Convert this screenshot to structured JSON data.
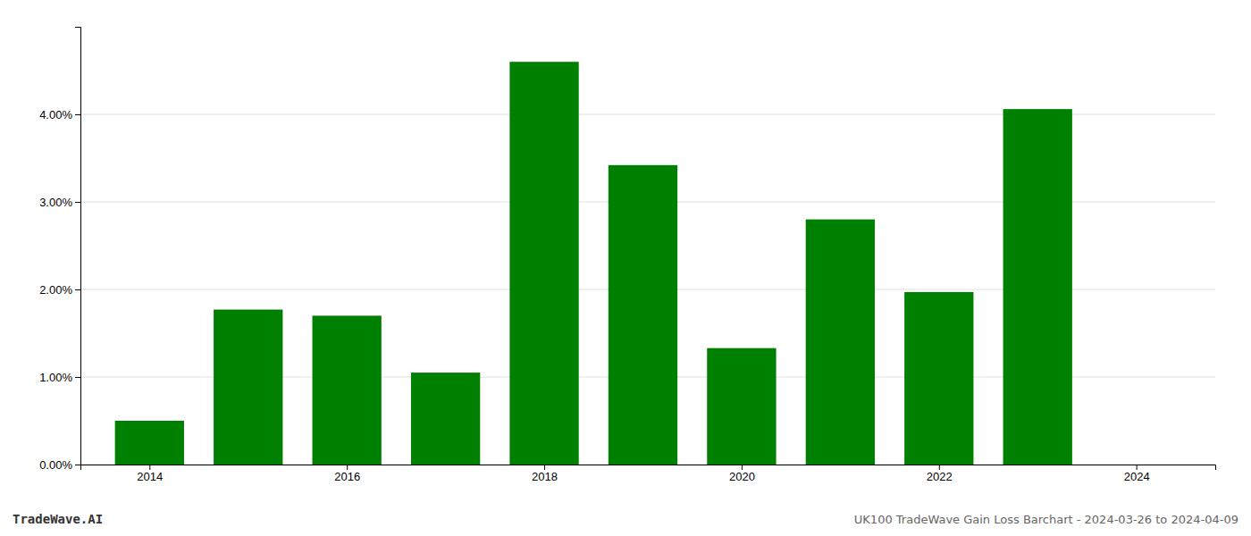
{
  "chart_data": {
    "type": "bar",
    "title": "UK100 TradeWave Gain Loss Barchart - 2024-03-26 to 2024-04-09",
    "annotations": [
      "TradeWave.AI"
    ],
    "x": [
      2014,
      2015,
      2016,
      2017,
      2018,
      2019,
      2020,
      2021,
      2022,
      2023
    ],
    "values": [
      0.005,
      0.0177,
      0.017,
      0.0105,
      0.046,
      0.0342,
      0.0133,
      0.028,
      0.0197,
      0.0406
    ],
    "color": "#008000",
    "xlim": [
      2013.3,
      2024.8
    ],
    "xticks": [
      2014,
      2016,
      2018,
      2020,
      2022,
      2024
    ],
    "ylim": [
      0,
      0.05
    ],
    "yticks": [
      {
        "value": 0.0,
        "label": "0.00%"
      },
      {
        "value": 0.01,
        "label": "1.00%"
      },
      {
        "value": 0.02,
        "label": "2.00%"
      },
      {
        "value": 0.03,
        "label": "3.00%"
      },
      {
        "value": 0.04,
        "label": "4.00%"
      }
    ],
    "grid": true
  }
}
